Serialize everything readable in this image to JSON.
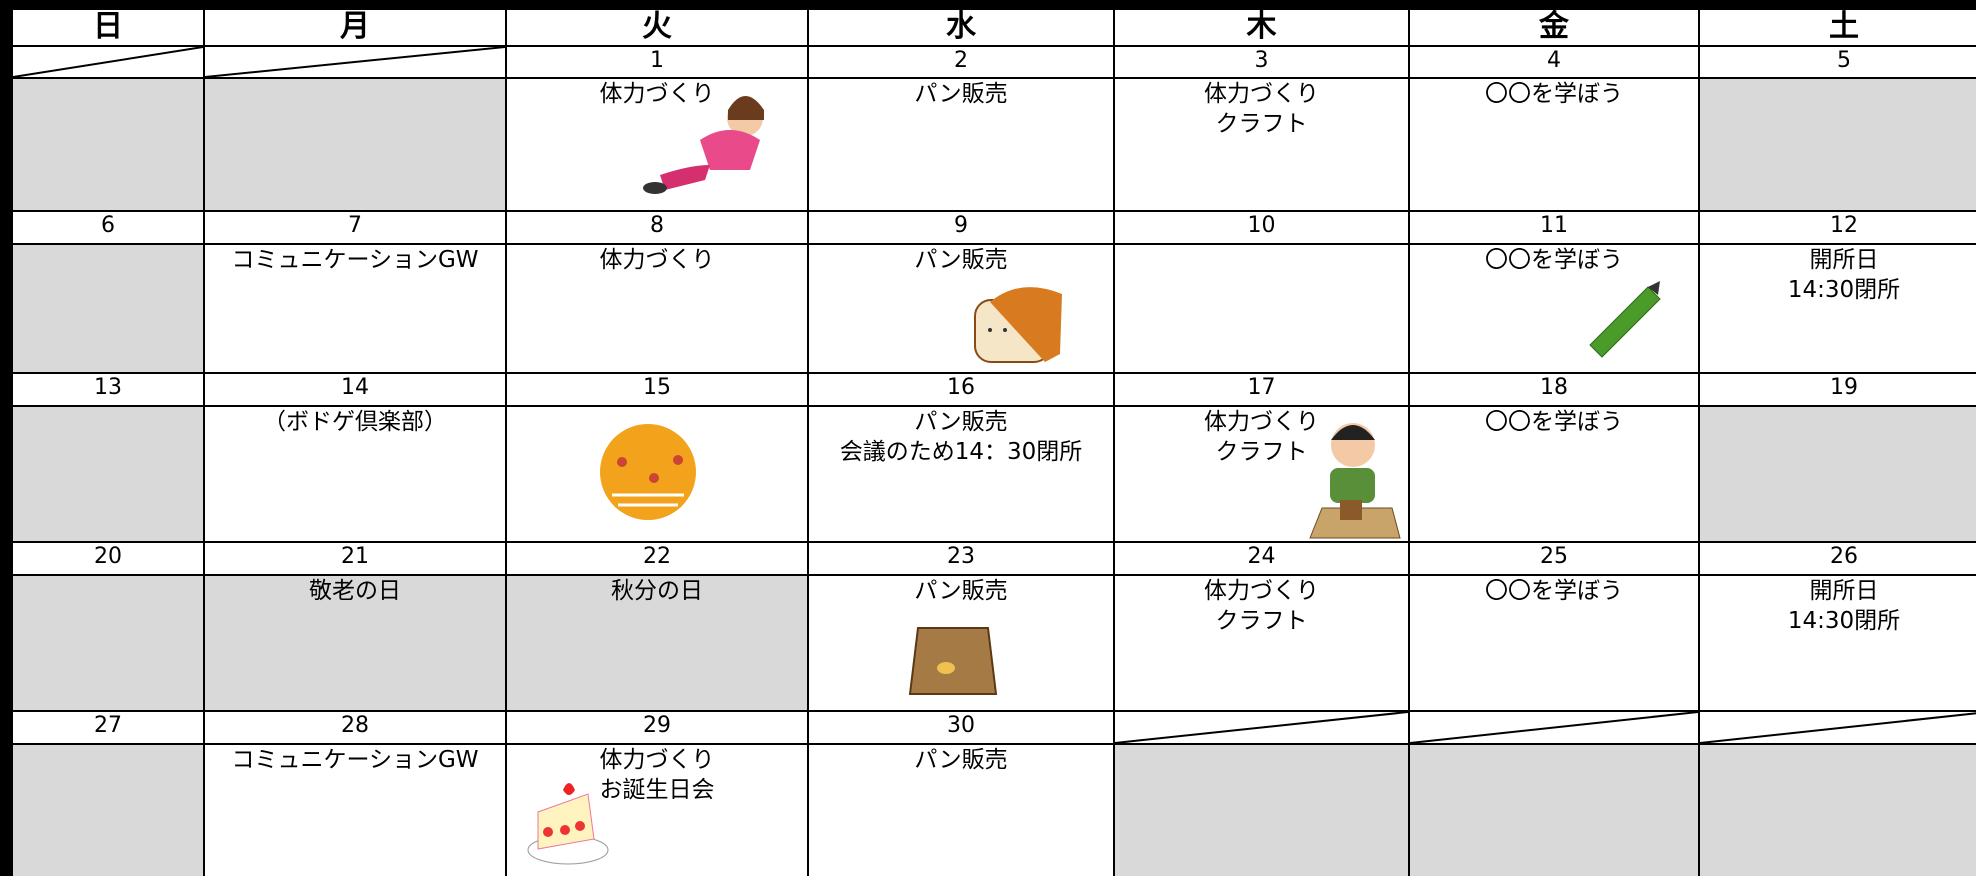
{
  "header": {
    "days": [
      "日",
      "月",
      "火",
      "水",
      "木",
      "金",
      "土"
    ]
  },
  "weeks": [
    {
      "dates": [
        null,
        null,
        1,
        2,
        3,
        4,
        5
      ],
      "events": [
        [],
        [],
        [
          "体力づくり"
        ],
        [
          "パン販売"
        ],
        [
          "体力づくり",
          "クラフト"
        ],
        [
          "〇〇を学ぼう"
        ],
        []
      ]
    },
    {
      "dates": [
        6,
        7,
        8,
        9,
        10,
        11,
        12
      ],
      "events": [
        [],
        [
          "コミュニケーションGW"
        ],
        [
          "体力づくり"
        ],
        [
          "パン販売"
        ],
        [],
        [
          "〇〇を学ぼう"
        ],
        [
          "開所日",
          "14:30閉所"
        ]
      ]
    },
    {
      "dates": [
        13,
        14,
        15,
        16,
        17,
        18,
        19
      ],
      "events": [
        [],
        [
          "（ボドゲ倶楽部）"
        ],
        [],
        [
          "パン販売",
          "会議のため14：30閉所"
        ],
        [
          "体力づくり",
          "クラフト"
        ],
        [
          "〇〇を学ぼう"
        ],
        []
      ]
    },
    {
      "dates": [
        20,
        21,
        22,
        23,
        24,
        25,
        26
      ],
      "events": [
        [],
        [
          "敬老の日"
        ],
        [
          "秋分の日"
        ],
        [
          "パン販売"
        ],
        [
          "体力づくり",
          "クラフト"
        ],
        [
          "〇〇を学ぼう"
        ],
        [
          "開所日",
          "14:30閉所"
        ]
      ]
    },
    {
      "dates": [
        27,
        28,
        29,
        30,
        null,
        null,
        null
      ],
      "events": [
        [],
        [
          "コミュニケーションGW"
        ],
        [
          "体力づくり",
          "お誕生日会"
        ],
        [
          "パン販売"
        ],
        [],
        [],
        []
      ]
    }
  ]
}
